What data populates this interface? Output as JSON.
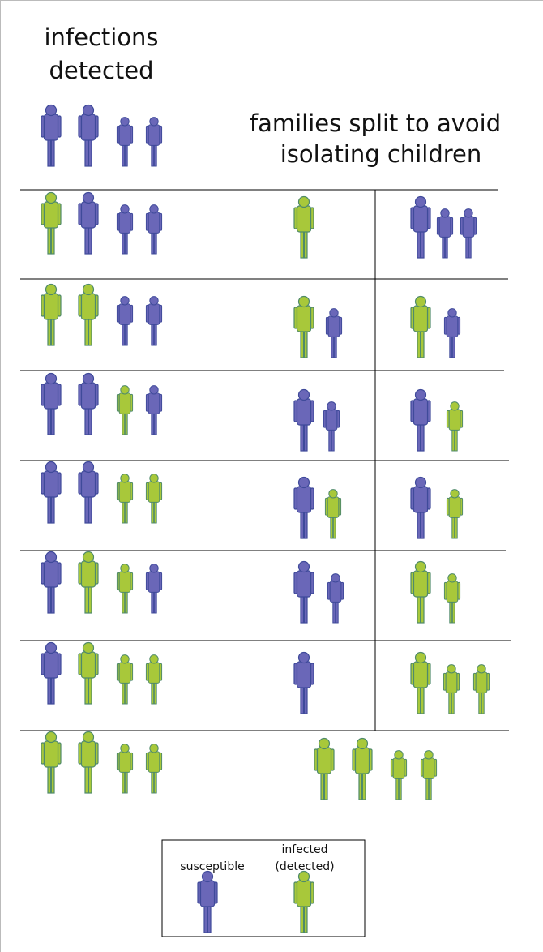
{
  "left_heading": {
    "lines": [
      "infections",
      "detected"
    ]
  },
  "right_heading": {
    "lines": [
      "families split to avoid",
      "isolating children"
    ]
  },
  "legend": {
    "susceptible": "susceptible",
    "infected": [
      "infected",
      "(detected)"
    ]
  }
}
